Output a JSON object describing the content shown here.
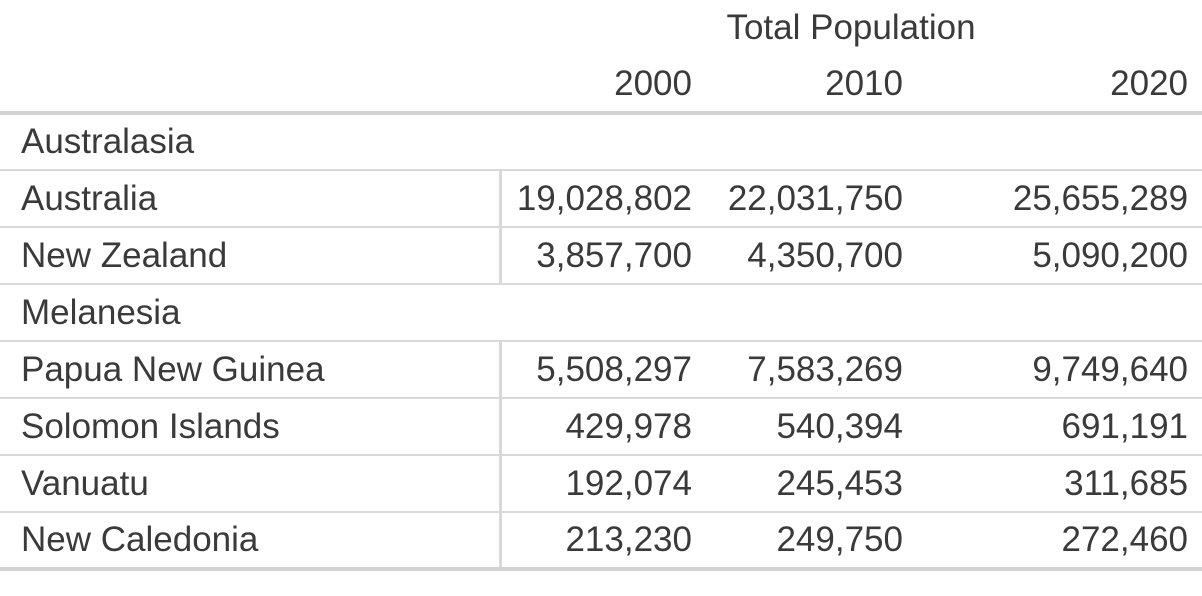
{
  "table": {
    "title": "Total Population",
    "years": [
      "2000",
      "2010",
      "2020"
    ],
    "sections": [
      {
        "region": "Australasia",
        "rows": [
          {
            "name": "Australia",
            "values": [
              "19,028,802",
              "22,031,750",
              "25,655,289"
            ]
          },
          {
            "name": "New Zealand",
            "values": [
              "3,857,700",
              "4,350,700",
              "5,090,200"
            ]
          }
        ]
      },
      {
        "region": "Melanesia",
        "rows": [
          {
            "name": "Papua New Guinea",
            "values": [
              "5,508,297",
              "7,583,269",
              "9,749,640"
            ]
          },
          {
            "name": "Solomon Islands",
            "values": [
              "429,978",
              "540,394",
              "691,191"
            ]
          },
          {
            "name": "Vanuatu",
            "values": [
              "192,074",
              "245,453",
              "311,685"
            ]
          },
          {
            "name": "New Caledonia",
            "values": [
              "213,230",
              "249,750",
              "272,460"
            ]
          }
        ]
      }
    ]
  },
  "colors": {
    "background": "#ffffff",
    "text": "#3a3a3a",
    "border_heavy": "#d2d2d2",
    "border_light": "#d9d9d9"
  },
  "chart_data": {
    "type": "table",
    "title": "Total Population",
    "columns": [
      "2000",
      "2010",
      "2020"
    ],
    "groups": [
      {
        "name": "Australasia",
        "rows": [
          {
            "label": "Australia",
            "values": [
              19028802,
              22031750,
              25655289
            ]
          },
          {
            "label": "New Zealand",
            "values": [
              3857700,
              4350700,
              5090200
            ]
          }
        ]
      },
      {
        "name": "Melanesia",
        "rows": [
          {
            "label": "Papua New Guinea",
            "values": [
              5508297,
              7583269,
              9749640
            ]
          },
          {
            "label": "Solomon Islands",
            "values": [
              429978,
              540394,
              691191
            ]
          },
          {
            "label": "Vanuatu",
            "values": [
              192074,
              245453,
              311685
            ]
          },
          {
            "label": "New Caledonia",
            "values": [
              213230,
              249750,
              272460
            ]
          }
        ]
      }
    ]
  }
}
